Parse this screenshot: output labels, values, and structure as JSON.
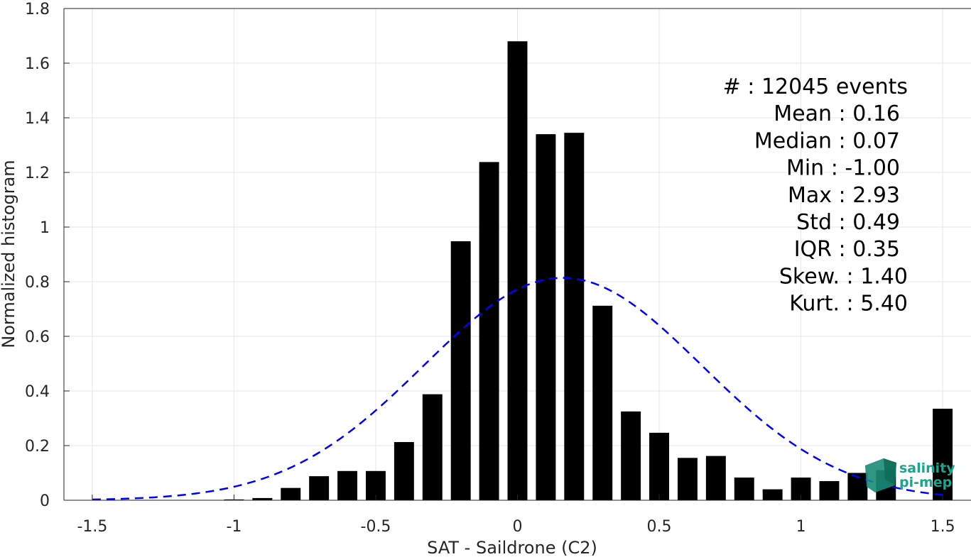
{
  "chart_data": {
    "type": "bar",
    "xlabel": "SAT - Saildrone (C2)",
    "ylabel": "Normalized histogram",
    "xlim": [
      -1.6,
      1.6
    ],
    "ylim": [
      0,
      1.8
    ],
    "x_ticks": [
      -1.5,
      -1,
      -0.5,
      0,
      0.5,
      1,
      1.5
    ],
    "x_tick_labels": [
      "-1.5",
      "-1",
      "-0.5",
      "0",
      "0.5",
      "1",
      "1.5"
    ],
    "y_ticks": [
      0,
      0.2,
      0.4,
      0.6,
      0.8,
      1,
      1.2,
      1.4,
      1.6,
      1.8
    ],
    "y_tick_labels": [
      "0",
      "0.2",
      "0.4",
      "0.6",
      "0.8",
      "1",
      "1.2",
      "1.4",
      "1.6",
      "1.8"
    ],
    "grid": true,
    "bar_color": "#000000",
    "bar_width": 0.07,
    "bins": [
      {
        "x": -1.0,
        "y": 0.003
      },
      {
        "x": -0.9,
        "y": 0.008
      },
      {
        "x": -0.8,
        "y": 0.045
      },
      {
        "x": -0.7,
        "y": 0.088
      },
      {
        "x": -0.6,
        "y": 0.107
      },
      {
        "x": -0.5,
        "y": 0.107
      },
      {
        "x": -0.4,
        "y": 0.213
      },
      {
        "x": -0.3,
        "y": 0.388
      },
      {
        "x": -0.2,
        "y": 0.948
      },
      {
        "x": -0.1,
        "y": 1.238
      },
      {
        "x": 0.0,
        "y": 1.68
      },
      {
        "x": 0.1,
        "y": 1.34
      },
      {
        "x": 0.2,
        "y": 1.345
      },
      {
        "x": 0.3,
        "y": 0.712
      },
      {
        "x": 0.4,
        "y": 0.325
      },
      {
        "x": 0.5,
        "y": 0.247
      },
      {
        "x": 0.6,
        "y": 0.155
      },
      {
        "x": 0.7,
        "y": 0.162
      },
      {
        "x": 0.8,
        "y": 0.083
      },
      {
        "x": 0.9,
        "y": 0.04
      },
      {
        "x": 1.0,
        "y": 0.083
      },
      {
        "x": 1.1,
        "y": 0.07
      },
      {
        "x": 1.2,
        "y": 0.1
      },
      {
        "x": 1.3,
        "y": 0.11
      },
      {
        "x": 1.5,
        "y": 0.335
      }
    ],
    "fit_curve": {
      "type": "gaussian",
      "mean": 0.16,
      "std": 0.49,
      "x_range": [
        -1.5,
        1.5
      ],
      "color": "#0000ff",
      "style": "dashed"
    },
    "stats": [
      {
        "label": "#  : 12045 events"
      },
      {
        "label": "Mean : 0.16"
      },
      {
        "label": "Median : 0.07"
      },
      {
        "label": "Min : -1.00"
      },
      {
        "label": "Max : 2.93"
      },
      {
        "label": "Std : 0.49"
      },
      {
        "label": "IQR : 0.35"
      },
      {
        "label": "Skew. : 1.40"
      },
      {
        "label": "Kurt. : 5.40"
      }
    ]
  },
  "logo": {
    "line1": "salinity",
    "line2": "pi-mep",
    "color": "#1aa58e"
  }
}
